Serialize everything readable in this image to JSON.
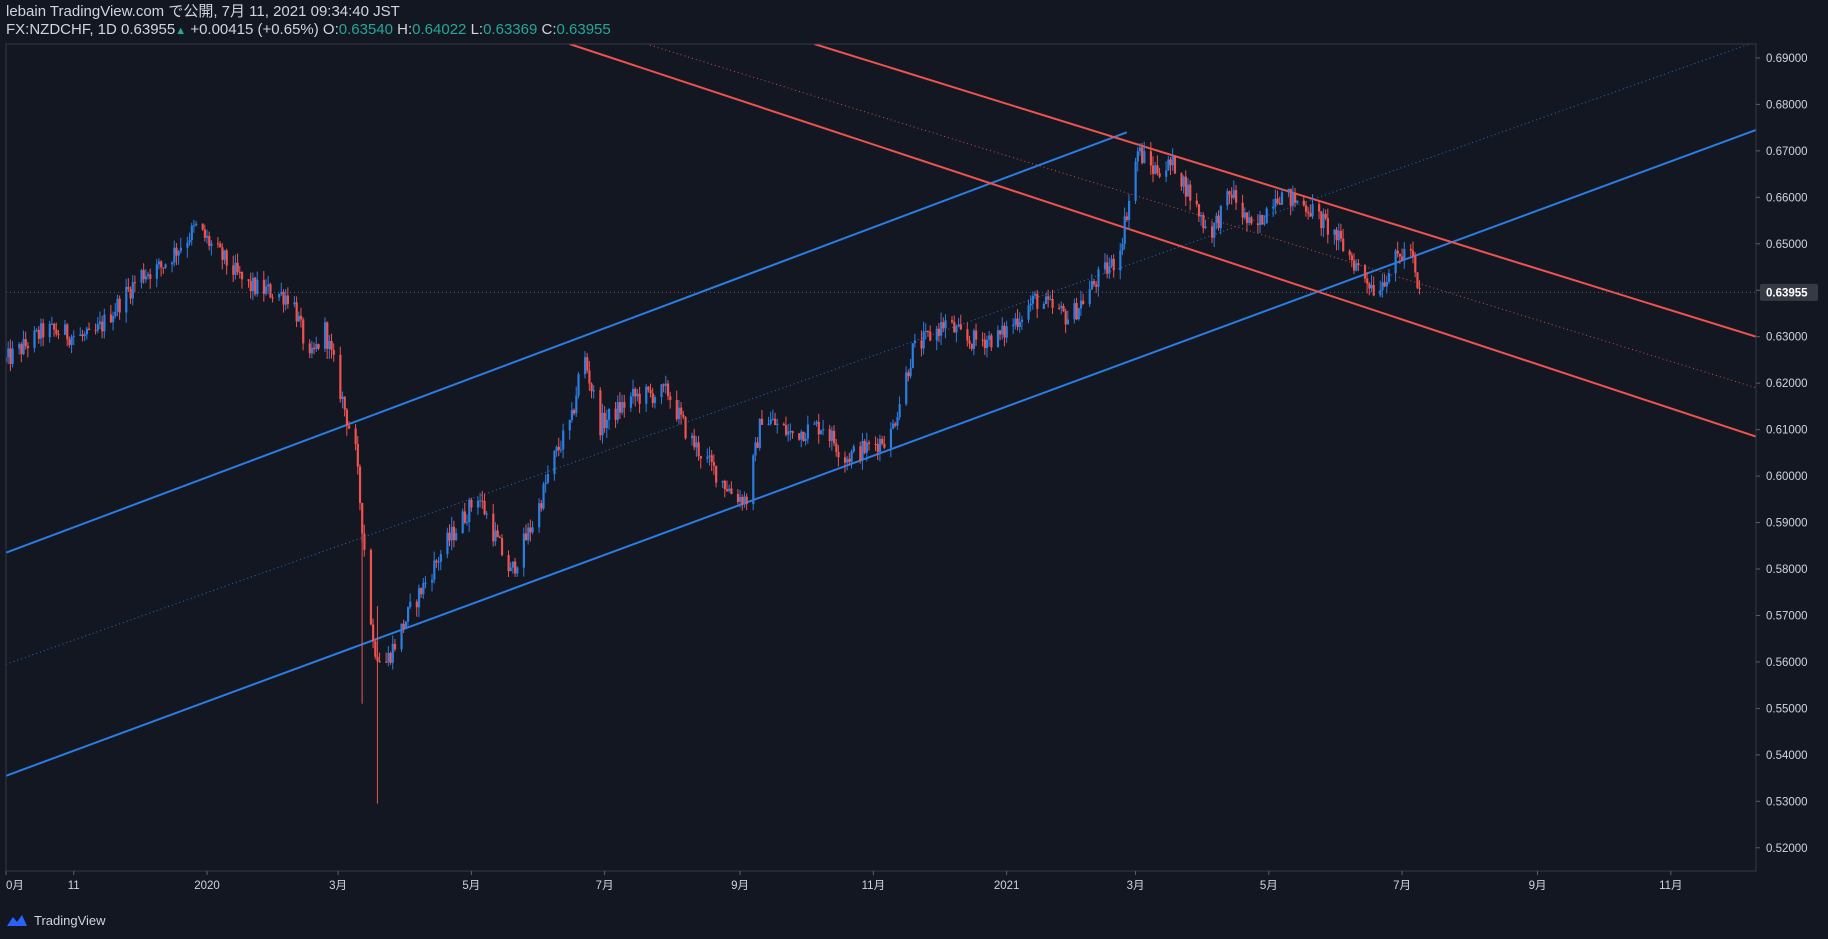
{
  "header": {
    "line1": "lebain TradingView.com で公開, 7月 11, 2021 09:34:40 JST",
    "symbol": "FX:NZDCHF, 1D",
    "last": "0.63955",
    "change_arrow": "▲",
    "change": "+0.00415 (+0.65%)",
    "o_label": "O:",
    "o": "0.63540",
    "h_label": "H:",
    "h": "0.64022",
    "l_label": "L:",
    "l": "0.63369",
    "c_label": "C:",
    "c": "0.63955"
  },
  "brand": {
    "logo_icon": "tradingview-logo-icon",
    "label": "TradingView"
  },
  "colors": {
    "background": "#131722",
    "up": "#2a7de1",
    "down": "#ef5350",
    "channel_up": "#2a7de1",
    "channel_down": "#ef5350",
    "axis_text": "#d1d4dc",
    "axis_line": "#363a45"
  },
  "chart_data": {
    "type": "candlestick",
    "symbol": "FX:NZDCHF",
    "timeframe": "1D",
    "last_price": 0.63955,
    "last_price_label": "0.63955",
    "ylim": [
      0.515,
      0.693
    ],
    "y_ticks": [
      "0.69000",
      "0.68000",
      "0.67000",
      "0.66000",
      "0.65000",
      "0.64000",
      "0.63000",
      "0.62000",
      "0.61000",
      "0.60000",
      "0.59000",
      "0.58000",
      "0.57000",
      "0.56000",
      "0.55000",
      "0.54000",
      "0.53000",
      "0.52000"
    ],
    "y_tick_values": [
      0.69,
      0.68,
      0.67,
      0.66,
      0.65,
      0.64,
      0.63,
      0.62,
      0.61,
      0.6,
      0.59,
      0.58,
      0.57,
      0.56,
      0.55,
      0.54,
      0.53,
      0.52
    ],
    "x_range": [
      "2019-10-01",
      "2021-12-10"
    ],
    "x_ticks": [
      {
        "label": "0月",
        "date": "2019-10-01"
      },
      {
        "label": "11",
        "date": "2019-11-01"
      },
      {
        "label": "2020",
        "date": "2020-01-01"
      },
      {
        "label": "3月",
        "date": "2020-03-01"
      },
      {
        "label": "5月",
        "date": "2020-05-01"
      },
      {
        "label": "7月",
        "date": "2020-07-01"
      },
      {
        "label": "9月",
        "date": "2020-09-01"
      },
      {
        "label": "11月",
        "date": "2020-11-01"
      },
      {
        "label": "2021",
        "date": "2021-01-01"
      },
      {
        "label": "3月",
        "date": "2021-03-01"
      },
      {
        "label": "5月",
        "date": "2021-05-01"
      },
      {
        "label": "7月",
        "date": "2021-07-01"
      },
      {
        "label": "9月",
        "date": "2021-09-01"
      },
      {
        "label": "11月",
        "date": "2021-11-01"
      }
    ],
    "path": [
      [
        "2019-10-01",
        0.6245
      ],
      [
        "2019-10-20",
        0.6315
      ],
      [
        "2019-11-10",
        0.6295
      ],
      [
        "2019-12-03",
        0.6435
      ],
      [
        "2019-12-12",
        0.645
      ],
      [
        "2019-12-28",
        0.6535
      ],
      [
        "2020-01-20",
        0.641
      ],
      [
        "2020-02-10",
        0.6385
      ],
      [
        "2020-02-18",
        0.6245
      ],
      [
        "2020-02-25",
        0.6315
      ],
      [
        "2020-03-10",
        0.605
      ],
      [
        "2020-03-18",
        0.564
      ],
      [
        "2020-03-23",
        0.559
      ],
      [
        "2020-04-05",
        0.572
      ],
      [
        "2020-04-20",
        0.585
      ],
      [
        "2020-05-05",
        0.596
      ],
      [
        "2020-05-20",
        0.579
      ],
      [
        "2020-06-01",
        0.592
      ],
      [
        "2020-06-08",
        0.603
      ],
      [
        "2020-06-17",
        0.612
      ],
      [
        "2020-06-22",
        0.627
      ],
      [
        "2020-06-30",
        0.611
      ],
      [
        "2020-07-15",
        0.617
      ],
      [
        "2020-07-31",
        0.618
      ],
      [
        "2020-08-10",
        0.608
      ],
      [
        "2020-08-30",
        0.596
      ],
      [
        "2020-09-05",
        0.595
      ],
      [
        "2020-09-12",
        0.613
      ],
      [
        "2020-09-25",
        0.609
      ],
      [
        "2020-10-10",
        0.611
      ],
      [
        "2020-10-20",
        0.604
      ],
      [
        "2020-10-30",
        0.606
      ],
      [
        "2020-11-10",
        0.609
      ],
      [
        "2020-11-20",
        0.627
      ],
      [
        "2020-12-05",
        0.633
      ],
      [
        "2020-12-15",
        0.629
      ],
      [
        "2020-12-30",
        0.63
      ],
      [
        "2021-01-15",
        0.638
      ],
      [
        "2021-01-31",
        0.634
      ],
      [
        "2021-02-12",
        0.642
      ],
      [
        "2021-02-22",
        0.647
      ],
      [
        "2021-02-28",
        0.662
      ],
      [
        "2021-03-03",
        0.67
      ],
      [
        "2021-03-10",
        0.666
      ],
      [
        "2021-03-20",
        0.667
      ],
      [
        "2021-04-05",
        0.652
      ],
      [
        "2021-04-15",
        0.661
      ],
      [
        "2021-04-25",
        0.652
      ],
      [
        "2021-05-05",
        0.661
      ],
      [
        "2021-05-20",
        0.658
      ],
      [
        "2021-06-01",
        0.652
      ],
      [
        "2021-06-10",
        0.646
      ],
      [
        "2021-06-20",
        0.64
      ],
      [
        "2021-06-30",
        0.647
      ],
      [
        "2021-07-06",
        0.649
      ],
      [
        "2021-07-09",
        0.6396
      ]
    ],
    "min_candles": [
      {
        "date": "2020-03-19",
        "low": 0.5295,
        "high": 0.572,
        "dir": "down"
      },
      {
        "date": "2020-03-12",
        "low": 0.551,
        "high": 0.592,
        "dir": "down"
      }
    ],
    "trendlines": [
      {
        "name": "",
        "color": "up",
        "style": "solid",
        "from": [
          "2019-10-01",
          0.5835
        ],
        "to": [
          "2021-02-25",
          0.674
        ]
      },
      {
        "name": "",
        "color": "up",
        "style": "solid",
        "from": [
          "2019-10-01",
          0.5355
        ],
        "to": [
          "2021-12-10",
          0.6745
        ]
      },
      {
        "name": "",
        "color": "up",
        "style": "dotted",
        "from": [
          "2019-10-01",
          0.5595
        ],
        "to": [
          "2021-12-10",
          0.6935
        ]
      },
      {
        "name": "",
        "color": "down",
        "style": "solid",
        "from": [
          "2020-06-15",
          0.693
        ],
        "to": [
          "2021-12-10",
          0.6085
        ]
      },
      {
        "name": "",
        "color": "down",
        "style": "solid",
        "from": [
          "2020-10-05",
          0.693
        ],
        "to": [
          "2021-12-10",
          0.63
        ]
      },
      {
        "name": "",
        "color": "down",
        "style": "dotted",
        "from": [
          "2020-07-20",
          0.693
        ],
        "to": [
          "2021-12-10",
          0.619
        ]
      }
    ]
  }
}
